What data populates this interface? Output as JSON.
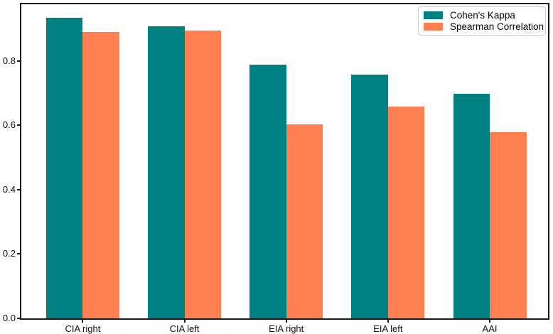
{
  "chart_data": {
    "type": "bar",
    "title": "",
    "xlabel": "",
    "ylabel": "",
    "categories": [
      "CIA right",
      "CIA left",
      "EIA right",
      "EIA left",
      "AAI"
    ],
    "series": [
      {
        "name": "Cohen's Kappa",
        "color": "#008080",
        "values": [
          0.935,
          0.908,
          0.788,
          0.758,
          0.698
        ]
      },
      {
        "name": "Spearman Correlation",
        "color": "#FF7F50",
        "values": [
          0.891,
          0.895,
          0.603,
          0.659,
          0.579
        ]
      }
    ],
    "ylim": [
      0,
      0.976
    ],
    "yticks": [
      0.0,
      0.2,
      0.4,
      0.6,
      0.8
    ],
    "ytick_labels": [
      "0.0",
      "0.2",
      "0.4",
      "0.6",
      "0.8"
    ],
    "grid": false,
    "legend_position": "upper right",
    "plot_background": "#ffffff",
    "spine_color": "#1a1a1a"
  }
}
